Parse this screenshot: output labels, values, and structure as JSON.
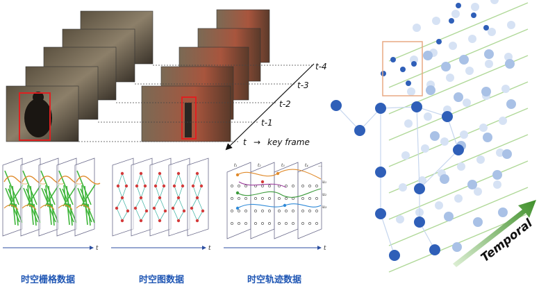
{
  "frames_left": {
    "labels": [
      "t-4",
      "t-3",
      "t-2",
      "t-1",
      "t"
    ],
    "key_frame_arrow": "→",
    "key_frame_text": "key frame"
  },
  "captions": {
    "grid": "时空栅格数据",
    "graph": "时空图数据",
    "trajectory": "时空轨迹数据"
  },
  "axis_t": "t",
  "trajectory_panels": {
    "top_labels": [
      "t₁",
      "t₂",
      "t₃",
      "t₄",
      "..."
    ],
    "side_labels": [
      "u₁",
      "u₂",
      "u₃"
    ]
  },
  "right": {
    "temporal_label": "Temporal",
    "colors": {
      "dark_node": "#2f5fb8",
      "mid_node": "#a9c1e6",
      "light_node": "#d6e2f4",
      "arrow": "#3f8f2a",
      "highlight_box": "#e8a882"
    }
  }
}
